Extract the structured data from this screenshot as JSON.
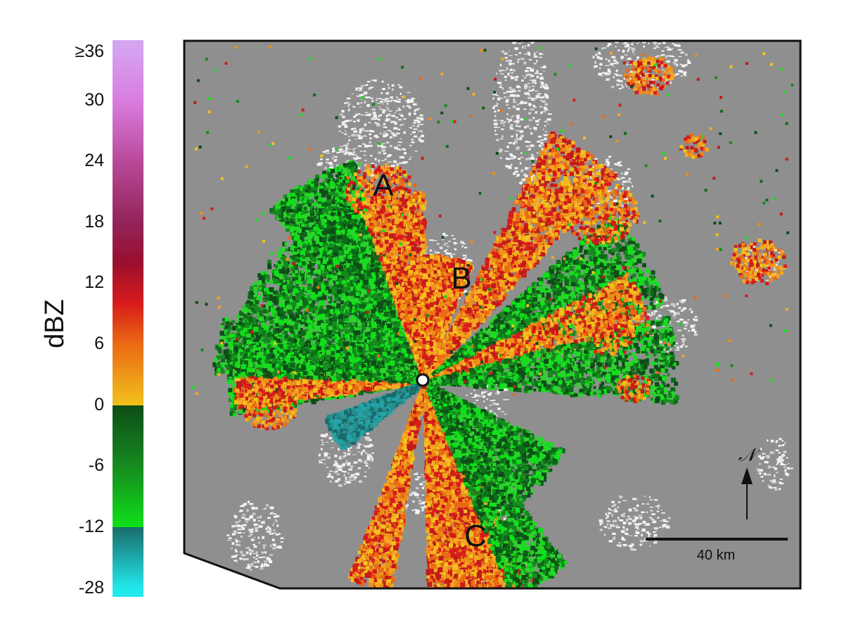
{
  "colorbar": {
    "unit": "dBZ",
    "ticks": [
      "≥36",
      "30",
      "24",
      "18",
      "12",
      "6",
      "0",
      "-6",
      "-12",
      "-28"
    ],
    "stops": [
      {
        "value": 36,
        "color": "#d4a8f2"
      },
      {
        "value": 30,
        "color": "#d97de0"
      },
      {
        "value": 24,
        "color": "#b94a9a"
      },
      {
        "value": 18,
        "color": "#92245a"
      },
      {
        "value": 14,
        "color": "#9a0f2e"
      },
      {
        "value": 10,
        "color": "#d81b1b"
      },
      {
        "value": 6,
        "color": "#ea6a14"
      },
      {
        "value": 0,
        "color": "#f1c21c"
      },
      {
        "value": 0,
        "color": "#0e4d17"
      },
      {
        "value": -6,
        "color": "#168a1f"
      },
      {
        "value": -12,
        "color": "#10e01a"
      },
      {
        "value": -12,
        "color": "#1a6b6a"
      },
      {
        "value": -28,
        "color": "#22e8ec"
      }
    ]
  },
  "map": {
    "background_color": "#8f8f8f",
    "terrain_color": "#ffffff",
    "labels": [
      "A",
      "B",
      "C"
    ],
    "north_label": "𝒩",
    "scale_bar_label": "40 km",
    "radar_site_icon": "circle-marker-icon"
  }
}
